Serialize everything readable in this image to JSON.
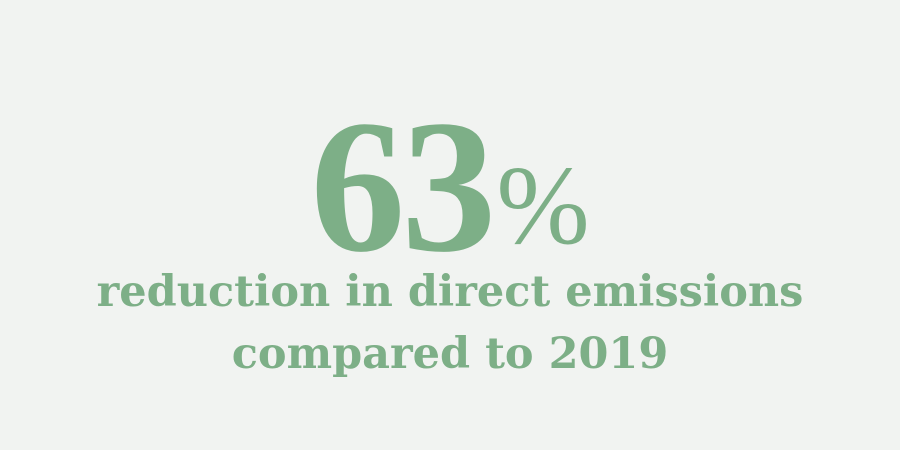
{
  "statistic": {
    "value": "63",
    "unit": "%",
    "caption_line_1": "reduction in direct emissions",
    "caption_line_2": "compared to 2019"
  },
  "colors": {
    "background": "#f1f3f1",
    "accent": "#7daf87"
  }
}
